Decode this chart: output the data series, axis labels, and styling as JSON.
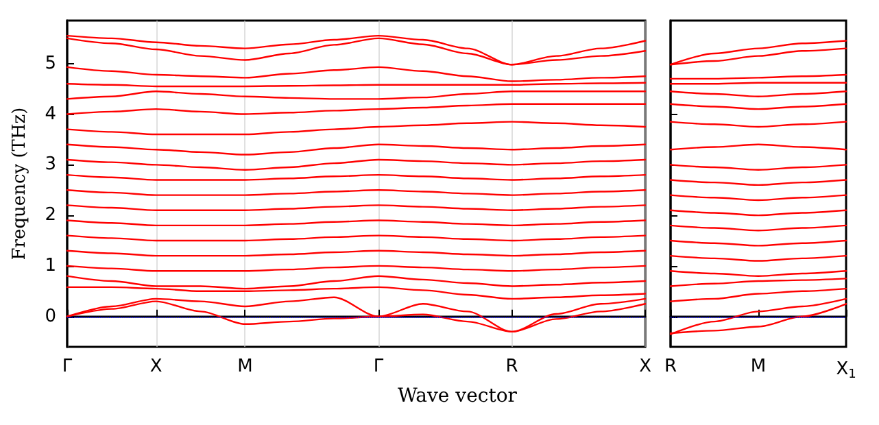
{
  "chart_data": [
    {
      "type": "line",
      "xlabel": "Wave vector",
      "ylabel": "Frequency (THz)",
      "categories": [
        "Γ",
        null,
        "X",
        null,
        "M",
        null,
        null,
        "Γ",
        null,
        null,
        "R",
        null,
        null,
        "X"
      ],
      "ylim": [
        -0.6,
        5.85
      ],
      "yticks": [
        0,
        1,
        2,
        3,
        4,
        5
      ],
      "grid": "x",
      "marker": "none",
      "line_style": "solid",
      "ref_lines": [
        {
          "axis": "y",
          "value": 0,
          "color": "#0000ff",
          "line_style": "dotted"
        }
      ],
      "series": [
        {
          "color": "#ff0000",
          "values": [
            5.55,
            5.5,
            5.42,
            5.35,
            5.3,
            5.38,
            5.47,
            5.55,
            5.47,
            5.3,
            4.98,
            5.15,
            5.3,
            5.45
          ]
        },
        {
          "color": "#ff0000",
          "values": [
            5.5,
            5.4,
            5.28,
            5.15,
            5.07,
            5.2,
            5.37,
            5.5,
            5.38,
            5.2,
            4.98,
            5.07,
            5.15,
            5.25
          ]
        },
        {
          "color": "#ff0000",
          "values": [
            4.93,
            4.85,
            4.78,
            4.75,
            4.72,
            4.8,
            4.87,
            4.93,
            4.85,
            4.75,
            4.65,
            4.68,
            4.72,
            4.75
          ]
        },
        {
          "color": "#ff0000",
          "values": [
            4.6,
            4.58,
            4.55,
            4.55,
            4.55,
            4.56,
            4.57,
            4.58,
            4.58,
            4.58,
            4.58,
            4.6,
            4.61,
            4.62
          ]
        },
        {
          "color": "#ff0000",
          "values": [
            4.3,
            4.35,
            4.45,
            4.4,
            4.35,
            4.32,
            4.3,
            4.3,
            4.33,
            4.4,
            4.45,
            4.45,
            4.45,
            4.45
          ]
        },
        {
          "color": "#ff0000",
          "values": [
            4.0,
            4.05,
            4.1,
            4.05,
            4.0,
            4.03,
            4.07,
            4.1,
            4.13,
            4.17,
            4.2,
            4.2,
            4.2,
            4.2
          ]
        },
        {
          "color": "#ff0000",
          "values": [
            3.7,
            3.65,
            3.6,
            3.6,
            3.6,
            3.65,
            3.7,
            3.75,
            3.78,
            3.82,
            3.85,
            3.82,
            3.78,
            3.75
          ]
        },
        {
          "color": "#ff0000",
          "values": [
            3.4,
            3.35,
            3.3,
            3.25,
            3.2,
            3.25,
            3.33,
            3.4,
            3.37,
            3.33,
            3.3,
            3.33,
            3.37,
            3.4
          ]
        },
        {
          "color": "#ff0000",
          "values": [
            3.1,
            3.05,
            3.0,
            2.95,
            2.9,
            2.95,
            3.03,
            3.1,
            3.07,
            3.03,
            3.0,
            3.03,
            3.07,
            3.1
          ]
        },
        {
          "color": "#ff0000",
          "values": [
            2.8,
            2.75,
            2.7,
            2.7,
            2.7,
            2.73,
            2.77,
            2.8,
            2.77,
            2.73,
            2.7,
            2.73,
            2.77,
            2.8
          ]
        },
        {
          "color": "#ff0000",
          "values": [
            2.5,
            2.45,
            2.4,
            2.4,
            2.4,
            2.43,
            2.47,
            2.5,
            2.47,
            2.43,
            2.4,
            2.43,
            2.47,
            2.5
          ]
        },
        {
          "color": "#ff0000",
          "values": [
            2.2,
            2.15,
            2.1,
            2.1,
            2.1,
            2.13,
            2.17,
            2.2,
            2.17,
            2.13,
            2.1,
            2.13,
            2.17,
            2.2
          ]
        },
        {
          "color": "#ff0000",
          "values": [
            1.9,
            1.85,
            1.8,
            1.8,
            1.8,
            1.83,
            1.87,
            1.9,
            1.87,
            1.83,
            1.8,
            1.83,
            1.87,
            1.9
          ]
        },
        {
          "color": "#ff0000",
          "values": [
            1.6,
            1.55,
            1.5,
            1.5,
            1.5,
            1.53,
            1.57,
            1.6,
            1.57,
            1.53,
            1.5,
            1.53,
            1.57,
            1.6
          ]
        },
        {
          "color": "#ff0000",
          "values": [
            1.3,
            1.25,
            1.2,
            1.2,
            1.2,
            1.23,
            1.27,
            1.3,
            1.27,
            1.23,
            1.2,
            1.23,
            1.27,
            1.3
          ]
        },
        {
          "color": "#ff0000",
          "values": [
            1.0,
            0.95,
            0.9,
            0.9,
            0.9,
            0.93,
            0.97,
            1.0,
            0.97,
            0.93,
            0.9,
            0.93,
            0.97,
            1.0
          ]
        },
        {
          "color": "#ff0000",
          "values": [
            0.8,
            0.7,
            0.6,
            0.6,
            0.55,
            0.6,
            0.7,
            0.8,
            0.73,
            0.66,
            0.6,
            0.63,
            0.67,
            0.7
          ]
        },
        {
          "color": "#ff0000",
          "values": [
            0.58,
            0.58,
            0.55,
            0.5,
            0.5,
            0.52,
            0.55,
            0.58,
            0.52,
            0.43,
            0.35,
            0.38,
            0.42,
            0.45
          ]
        },
        {
          "color": "#ff0000",
          "values": [
            0,
            0.2,
            0.35,
            0.3,
            0.2,
            0.3,
            0.38,
            0,
            0.25,
            0.1,
            -0.3,
            0.05,
            0.25,
            0.35
          ]
        },
        {
          "color": "#ff0000",
          "values": [
            0,
            0.15,
            0.3,
            0.1,
            -0.15,
            -0.1,
            -0.04,
            0,
            0.04,
            -0.1,
            -0.3,
            -0.05,
            0.1,
            0.25
          ]
        }
      ]
    },
    {
      "type": "line",
      "categories": [
        "R",
        null,
        "M",
        null,
        "X$_{1}$"
      ],
      "ylim": [
        -0.6,
        5.85
      ],
      "yticks": [
        0,
        1,
        2,
        3,
        4,
        5
      ],
      "tick_labels": "x",
      "marker": "none",
      "line_style": "solid",
      "ref_lines": [
        {
          "axis": "y",
          "value": 0,
          "color": "#0000ff",
          "line_style": "dotted"
        }
      ],
      "series": [
        {
          "color": "#ff0000",
          "values": [
            4.98,
            5.2,
            5.3,
            5.4,
            5.45
          ]
        },
        {
          "color": "#ff0000",
          "values": [
            4.98,
            5.05,
            5.15,
            5.25,
            5.3
          ]
        },
        {
          "color": "#ff0000",
          "values": [
            4.7,
            4.7,
            4.72,
            4.75,
            4.78
          ]
        },
        {
          "color": "#ff0000",
          "values": [
            4.6,
            4.6,
            4.62,
            4.62,
            4.62
          ]
        },
        {
          "color": "#ff0000",
          "values": [
            4.45,
            4.4,
            4.35,
            4.4,
            4.45
          ]
        },
        {
          "color": "#ff0000",
          "values": [
            4.2,
            4.15,
            4.1,
            4.15,
            4.2
          ]
        },
        {
          "color": "#ff0000",
          "values": [
            3.85,
            3.8,
            3.75,
            3.8,
            3.85
          ]
        },
        {
          "color": "#ff0000",
          "values": [
            3.3,
            3.35,
            3.4,
            3.35,
            3.3
          ]
        },
        {
          "color": "#ff0000",
          "values": [
            3.0,
            2.95,
            2.9,
            2.95,
            3.0
          ]
        },
        {
          "color": "#ff0000",
          "values": [
            2.7,
            2.65,
            2.6,
            2.65,
            2.7
          ]
        },
        {
          "color": "#ff0000",
          "values": [
            2.4,
            2.35,
            2.3,
            2.35,
            2.4
          ]
        },
        {
          "color": "#ff0000",
          "values": [
            2.1,
            2.05,
            2.0,
            2.05,
            2.1
          ]
        },
        {
          "color": "#ff0000",
          "values": [
            1.8,
            1.75,
            1.7,
            1.75,
            1.8
          ]
        },
        {
          "color": "#ff0000",
          "values": [
            1.5,
            1.45,
            1.4,
            1.45,
            1.5
          ]
        },
        {
          "color": "#ff0000",
          "values": [
            1.2,
            1.15,
            1.1,
            1.15,
            1.2
          ]
        },
        {
          "color": "#ff0000",
          "values": [
            0.9,
            0.85,
            0.8,
            0.85,
            0.9
          ]
        },
        {
          "color": "#ff0000",
          "values": [
            0.6,
            0.65,
            0.7,
            0.72,
            0.75
          ]
        },
        {
          "color": "#ff0000",
          "values": [
            0.3,
            0.35,
            0.45,
            0.5,
            0.55
          ]
        },
        {
          "color": "#ff0000",
          "values": [
            -0.35,
            -0.1,
            0.1,
            0.2,
            0.35
          ]
        },
        {
          "color": "#ff0000",
          "values": [
            -0.33,
            -0.28,
            -0.2,
            0.0,
            0.25
          ]
        }
      ]
    }
  ]
}
